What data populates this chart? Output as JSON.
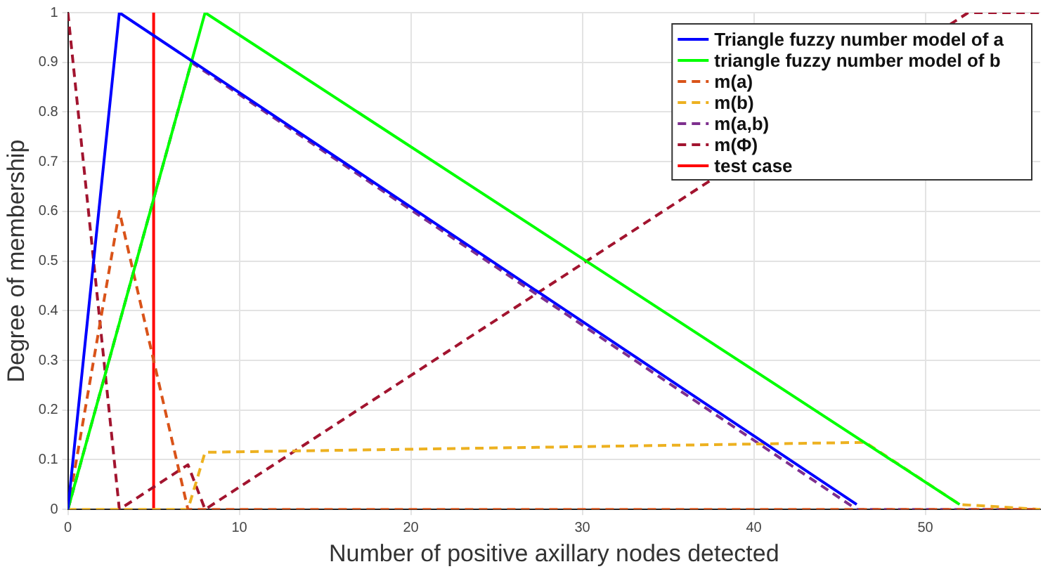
{
  "chart_data": {
    "type": "line",
    "xlabel": "Number of positive axillary nodes detected",
    "ylabel": "Degree of membership",
    "xlim": [
      0,
      56.7
    ],
    "xticks": [
      0,
      10,
      20,
      30,
      40,
      50
    ],
    "ylim": [
      0,
      1
    ],
    "yticks": [
      0,
      0.1,
      0.2,
      0.3,
      0.4,
      0.5,
      0.6,
      0.7,
      0.8,
      0.9,
      1
    ],
    "grid": true,
    "legend": "top right",
    "marker": "none",
    "series": [
      {
        "name": "Triangle fuzzy number model of a",
        "color": "#0000ff",
        "line_style": "solid",
        "x": [
          0,
          3,
          46
        ],
        "values": [
          0,
          1,
          0.01
        ]
      },
      {
        "name": "triangle fuzzy number model of b",
        "color": "#00ff00",
        "line_style": "solid",
        "x": [
          0,
          8,
          52
        ],
        "values": [
          0,
          1,
          0.01
        ]
      },
      {
        "name": "m(a)",
        "color": "#d95319",
        "line_style": "dashed",
        "x": [
          0,
          3,
          7,
          56.7
        ],
        "values": [
          0,
          0.6,
          0,
          0
        ]
      },
      {
        "name": "m(b)",
        "color": "#edb120",
        "line_style": "dashed",
        "x": [
          0,
          7,
          8,
          46.5,
          52,
          56.7
        ],
        "values": [
          0,
          0,
          0.115,
          0.135,
          0.01,
          0
        ]
      },
      {
        "name": "m(a,b)",
        "color": "#7e2f8e",
        "line_style": "dashed",
        "x": [
          0,
          7.2,
          46,
          56.7
        ],
        "values": [
          0,
          0.9,
          0,
          0
        ]
      },
      {
        "name": "m(Φ)",
        "color": "#a2142f",
        "line_style": "dashed",
        "x": [
          0,
          3,
          7,
          8,
          52.5,
          56.7
        ],
        "values": [
          1,
          0,
          0.09,
          0,
          1,
          1
        ]
      },
      {
        "name": "test case",
        "color": "#ff0000",
        "line_style": "solid",
        "x": [
          5,
          5
        ],
        "values": [
          0,
          1
        ]
      }
    ]
  }
}
